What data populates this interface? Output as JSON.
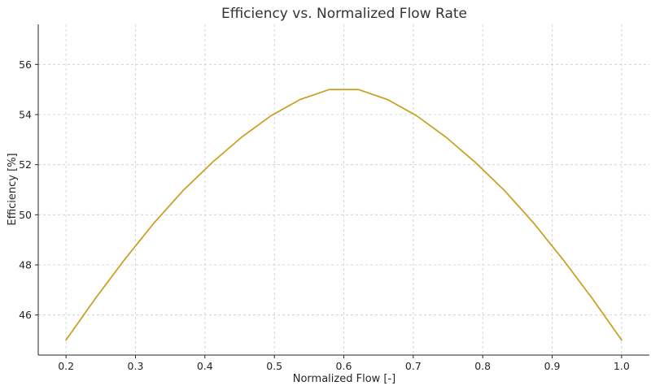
{
  "chart_data": {
    "type": "line",
    "title": "Efficiency vs. Normalized Flow Rate",
    "xlabel": "Normalized Flow [-]",
    "ylabel": "Efficiency [%]",
    "xlim": [
      0.16,
      1.04
    ],
    "ylim": [
      44.4,
      57.6
    ],
    "x_ticks": [
      0.2,
      0.3,
      0.4,
      0.5,
      0.6,
      0.7,
      0.8,
      0.9,
      1.0
    ],
    "x_tick_labels": [
      "0.2",
      "0.3",
      "0.4",
      "0.5",
      "0.6",
      "0.7",
      "0.8",
      "0.9",
      "1.0"
    ],
    "y_ticks": [
      46,
      48,
      50,
      52,
      54,
      56
    ],
    "y_tick_labels": [
      "46",
      "48",
      "50",
      "52",
      "54",
      "56"
    ],
    "grid": true,
    "legend": "none",
    "series": [
      {
        "color": "#c9a227",
        "x": [
          0.2,
          0.242,
          0.284,
          0.326,
          0.368,
          0.411,
          0.453,
          0.495,
          0.537,
          0.579,
          0.621,
          0.663,
          0.705,
          0.747,
          0.789,
          0.832,
          0.874,
          0.916,
          0.958,
          1.0
        ],
        "y": [
          45.0,
          46.65,
          48.2,
          49.65,
          50.95,
          52.1,
          53.1,
          53.95,
          54.6,
          55.0,
          55.0,
          54.6,
          53.95,
          53.1,
          52.1,
          50.95,
          49.65,
          48.2,
          46.65,
          45.0
        ]
      }
    ]
  }
}
